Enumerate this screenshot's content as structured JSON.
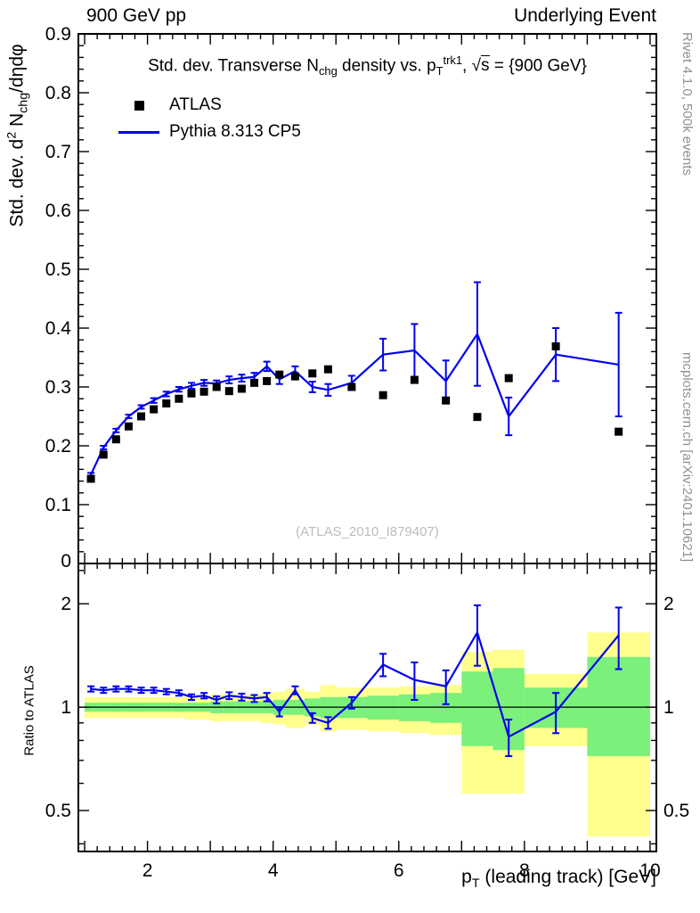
{
  "header": {
    "left": "900 GeV pp",
    "right": "Underlying Event"
  },
  "side_texts": {
    "top_right": "Rivet 4.1.0,  500k events",
    "bottom_right": "mcplots.cern.ch [arXiv:2401.10621]"
  },
  "watermark": "(ATLAS_2010_I879407)",
  "ratio_ylabel": "Ratio to ATLAS",
  "title_rich": [
    {
      "t": "Std. dev. Transverse N"
    },
    {
      "sub": "chg"
    },
    {
      "t": " density vs. p"
    },
    {
      "sub": "T"
    },
    {
      "sup": "trk1"
    },
    {
      "t": ", "
    },
    {
      "t": "√"
    },
    {
      "ovl": "s"
    },
    {
      "t": " = {900 GeV}"
    }
  ],
  "ylabel_rich": [
    {
      "t": "Std. dev. d"
    },
    {
      "sup": "2"
    },
    {
      "t": " N"
    },
    {
      "sub": "chg"
    },
    {
      "t": "/dηdφ"
    }
  ],
  "xlabel_rich": [
    {
      "t": "p"
    },
    {
      "sub": "T"
    },
    {
      "t": " (leading track) [GeV]"
    }
  ],
  "legend": [
    {
      "label": "ATLAS",
      "marker": "square",
      "color": "#000000"
    },
    {
      "label": "Pythia 8.313 CP5",
      "marker": "line",
      "color": "#0000ee"
    }
  ],
  "colors": {
    "pythia_blue": "#0000ee",
    "band_green": "#7bf07b",
    "band_yellow": "#ffff8d",
    "frame": "#000000",
    "gray_text": "#909090",
    "watermark": "#bcbcbc"
  },
  "chart_data": {
    "type": "line",
    "title": "Std. dev. Transverse Nchg density vs. pT^trk1, sqrt(s) = {900 GeV}",
    "xlabel": "pT (leading track) [GeV]",
    "ylabel": "Std. dev. d^2 Nchg/detadphi",
    "ratio_label": "Ratio to ATLAS",
    "grid": false,
    "legend_position": "top-left",
    "xlim": [
      0.9,
      10.1
    ],
    "main_ylim": [
      0.0,
      0.9
    ],
    "main_yticks": [
      0,
      0.1,
      0.2,
      0.3,
      0.4,
      0.5,
      0.6,
      0.7,
      0.8,
      0.9
    ],
    "xticks_labeled": [
      2,
      4,
      6,
      8,
      10
    ],
    "ratio_scale": "log",
    "ratio_ylim": [
      0.38,
      2.62
    ],
    "ratio_yticks": [
      0.5,
      1,
      2
    ],
    "bin_edges": [
      1.0,
      1.2,
      1.4,
      1.6,
      1.8,
      2.0,
      2.2,
      2.4,
      2.6,
      2.8,
      3.0,
      3.2,
      3.4,
      3.6,
      3.8,
      4.0,
      4.2,
      4.5,
      4.75,
      5.0,
      5.5,
      6.0,
      6.5,
      7.0,
      7.5,
      8.0,
      9.0,
      10.0
    ],
    "x": [
      1.1,
      1.3,
      1.5,
      1.7,
      1.9,
      2.1,
      2.3,
      2.5,
      2.7,
      2.9,
      3.1,
      3.3,
      3.5,
      3.7,
      3.9,
      4.1,
      4.35,
      4.625,
      4.875,
      5.25,
      5.75,
      6.25,
      6.75,
      7.25,
      7.75,
      8.5,
      9.5
    ],
    "series": [
      {
        "name": "ATLAS",
        "style": "scatter-square",
        "color": "#000000",
        "y": [
          0.144,
          0.185,
          0.211,
          0.233,
          0.25,
          0.262,
          0.272,
          0.28,
          0.289,
          0.292,
          0.3,
          0.293,
          0.297,
          0.307,
          0.31,
          0.321,
          0.318,
          0.323,
          0.33,
          0.3,
          0.286,
          0.312,
          0.277,
          0.249,
          0.315,
          0.369,
          0.224
        ]
      },
      {
        "name": "Pythia 8.313 CP5",
        "style": "line-errorbars",
        "color": "#0000ee",
        "y": [
          0.151,
          0.197,
          0.226,
          0.25,
          0.266,
          0.277,
          0.288,
          0.296,
          0.302,
          0.307,
          0.306,
          0.312,
          0.315,
          0.317,
          0.335,
          0.313,
          0.327,
          0.3,
          0.295,
          0.307,
          0.355,
          0.362,
          0.31,
          0.39,
          0.25,
          0.355,
          0.338
        ],
        "yerr": [
          0.003,
          0.003,
          0.003,
          0.003,
          0.003,
          0.004,
          0.004,
          0.004,
          0.005,
          0.005,
          0.005,
          0.006,
          0.006,
          0.007,
          0.008,
          0.008,
          0.008,
          0.009,
          0.01,
          0.012,
          0.027,
          0.045,
          0.035,
          0.088,
          0.032,
          0.045,
          0.088
        ]
      }
    ],
    "ratio": {
      "name": "Pythia 8.313 CP5 / ATLAS",
      "y": [
        1.13,
        1.12,
        1.13,
        1.13,
        1.12,
        1.12,
        1.11,
        1.1,
        1.07,
        1.08,
        1.05,
        1.08,
        1.07,
        1.06,
        1.07,
        0.97,
        1.12,
        0.93,
        0.9,
        1.03,
        1.33,
        1.2,
        1.15,
        1.65,
        0.82,
        0.97,
        1.62
      ],
      "yerr": [
        0.02,
        0.02,
        0.02,
        0.02,
        0.02,
        0.02,
        0.02,
        0.02,
        0.02,
        0.02,
        0.025,
        0.025,
        0.025,
        0.025,
        0.03,
        0.03,
        0.03,
        0.03,
        0.035,
        0.04,
        0.1,
        0.15,
        0.13,
        0.33,
        0.1,
        0.13,
        0.33
      ],
      "bands": {
        "green": [
          [
            0.97,
            1.03
          ],
          [
            0.97,
            1.03
          ],
          [
            0.97,
            1.03
          ],
          [
            0.97,
            1.03
          ],
          [
            0.97,
            1.03
          ],
          [
            0.97,
            1.03
          ],
          [
            0.97,
            1.03
          ],
          [
            0.97,
            1.03
          ],
          [
            0.97,
            1.03
          ],
          [
            0.97,
            1.03
          ],
          [
            0.96,
            1.04
          ],
          [
            0.96,
            1.04
          ],
          [
            0.96,
            1.04
          ],
          [
            0.96,
            1.04
          ],
          [
            0.96,
            1.04
          ],
          [
            0.95,
            1.05
          ],
          [
            0.95,
            1.05
          ],
          [
            0.94,
            1.06
          ],
          [
            0.93,
            1.07
          ],
          [
            0.93,
            1.07
          ],
          [
            0.92,
            1.08
          ],
          [
            0.91,
            1.09
          ],
          [
            0.9,
            1.1
          ],
          [
            0.77,
            1.27
          ],
          [
            0.75,
            1.3
          ],
          [
            0.87,
            1.14
          ],
          [
            0.72,
            1.4
          ]
        ],
        "yellow": [
          [
            0.93,
            1.07
          ],
          [
            0.93,
            1.07
          ],
          [
            0.93,
            1.07
          ],
          [
            0.93,
            1.07
          ],
          [
            0.93,
            1.07
          ],
          [
            0.93,
            1.07
          ],
          [
            0.93,
            1.07
          ],
          [
            0.93,
            1.07
          ],
          [
            0.92,
            1.08
          ],
          [
            0.92,
            1.08
          ],
          [
            0.91,
            1.09
          ],
          [
            0.91,
            1.09
          ],
          [
            0.91,
            1.09
          ],
          [
            0.91,
            1.09
          ],
          [
            0.9,
            1.1
          ],
          [
            0.89,
            1.11
          ],
          [
            0.87,
            1.13
          ],
          [
            0.89,
            1.11
          ],
          [
            0.85,
            1.16
          ],
          [
            0.86,
            1.14
          ],
          [
            0.85,
            1.14
          ],
          [
            0.84,
            1.15
          ],
          [
            0.83,
            1.16
          ],
          [
            0.56,
            1.45
          ],
          [
            0.56,
            1.47
          ],
          [
            0.77,
            1.25
          ],
          [
            0.42,
            1.65
          ]
        ]
      }
    }
  }
}
